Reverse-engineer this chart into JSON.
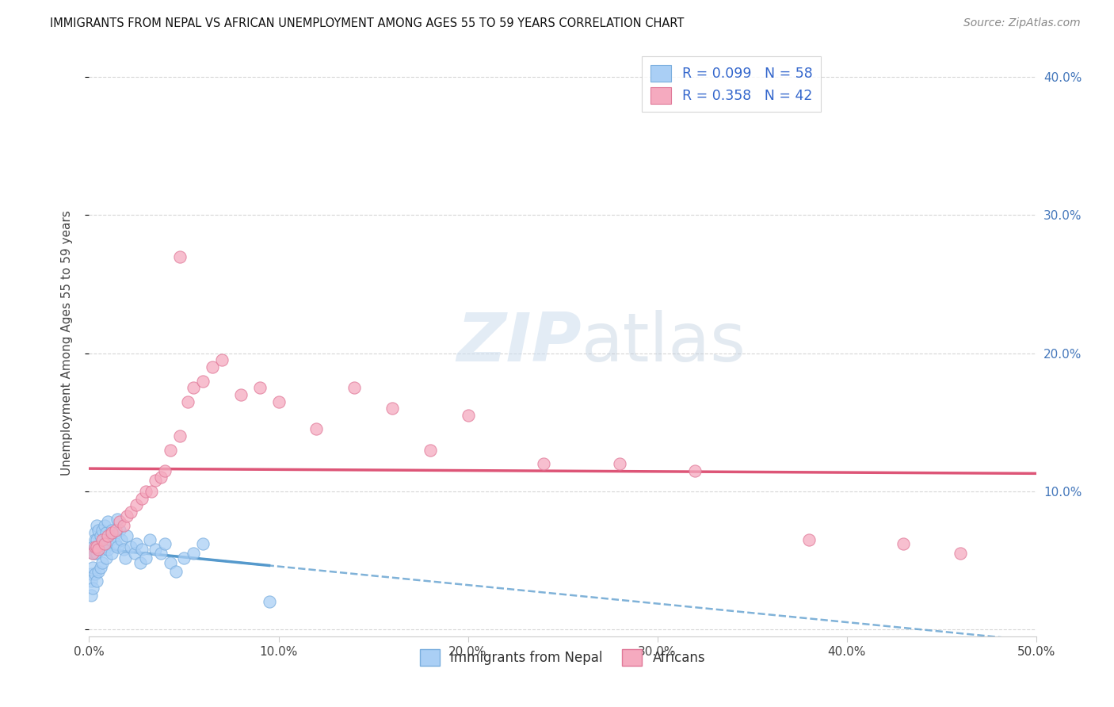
{
  "title": "IMMIGRANTS FROM NEPAL VS AFRICAN UNEMPLOYMENT AMONG AGES 55 TO 59 YEARS CORRELATION CHART",
  "source": "Source: ZipAtlas.com",
  "ylabel": "Unemployment Among Ages 55 to 59 years",
  "xlim": [
    0.0,
    0.5
  ],
  "ylim": [
    -0.005,
    0.42
  ],
  "xticks": [
    0.0,
    0.1,
    0.2,
    0.3,
    0.4,
    0.5
  ],
  "yticks_right": [
    0.0,
    0.1,
    0.2,
    0.3,
    0.4
  ],
  "ytick_labels_right": [
    "",
    "10.0%",
    "20.0%",
    "30.0%",
    "40.0%"
  ],
  "xtick_labels": [
    "0.0%",
    "10.0%",
    "20.0%",
    "30.0%",
    "40.0%",
    "50.0%"
  ],
  "nepal_color": "#aacff5",
  "nepal_edge_color": "#7aaede",
  "african_color": "#f5aabf",
  "african_edge_color": "#e07898",
  "nepal_R": 0.099,
  "nepal_N": 58,
  "african_R": 0.358,
  "african_N": 42,
  "legend_label_nepal": "Immigrants from Nepal",
  "legend_label_african": "Africans",
  "nepal_trend_color": "#5599cc",
  "african_trend_color": "#dd5577",
  "watermark_zip": "ZIP",
  "watermark_atlas": "atlas",
  "background_color": "#ffffff",
  "grid_color": "#cccccc",
  "nepal_scatter_x": [
    0.001,
    0.001,
    0.001,
    0.002,
    0.002,
    0.002,
    0.002,
    0.003,
    0.003,
    0.003,
    0.003,
    0.004,
    0.004,
    0.004,
    0.004,
    0.005,
    0.005,
    0.005,
    0.006,
    0.006,
    0.006,
    0.007,
    0.007,
    0.007,
    0.008,
    0.008,
    0.009,
    0.009,
    0.01,
    0.01,
    0.011,
    0.012,
    0.012,
    0.013,
    0.014,
    0.015,
    0.015,
    0.016,
    0.017,
    0.018,
    0.019,
    0.02,
    0.022,
    0.024,
    0.025,
    0.027,
    0.028,
    0.03,
    0.032,
    0.035,
    0.038,
    0.04,
    0.043,
    0.046,
    0.05,
    0.055,
    0.06,
    0.095
  ],
  "nepal_scatter_y": [
    0.04,
    0.035,
    0.025,
    0.06,
    0.055,
    0.045,
    0.03,
    0.07,
    0.065,
    0.055,
    0.04,
    0.075,
    0.065,
    0.055,
    0.035,
    0.072,
    0.058,
    0.042,
    0.068,
    0.058,
    0.045,
    0.072,
    0.06,
    0.048,
    0.075,
    0.058,
    0.07,
    0.052,
    0.078,
    0.058,
    0.065,
    0.072,
    0.055,
    0.068,
    0.062,
    0.08,
    0.06,
    0.072,
    0.065,
    0.058,
    0.052,
    0.068,
    0.06,
    0.055,
    0.062,
    0.048,
    0.058,
    0.052,
    0.065,
    0.058,
    0.055,
    0.062,
    0.048,
    0.042,
    0.052,
    0.055,
    0.062,
    0.02
  ],
  "african_scatter_x": [
    0.002,
    0.003,
    0.004,
    0.005,
    0.007,
    0.008,
    0.01,
    0.012,
    0.014,
    0.016,
    0.018,
    0.02,
    0.022,
    0.025,
    0.028,
    0.03,
    0.033,
    0.035,
    0.038,
    0.04,
    0.043,
    0.048,
    0.052,
    0.055,
    0.06,
    0.065,
    0.07,
    0.08,
    0.09,
    0.1,
    0.12,
    0.14,
    0.16,
    0.18,
    0.2,
    0.24,
    0.28,
    0.32,
    0.38,
    0.43,
    0.048,
    0.46
  ],
  "african_scatter_y": [
    0.055,
    0.06,
    0.06,
    0.058,
    0.065,
    0.062,
    0.068,
    0.07,
    0.072,
    0.078,
    0.075,
    0.082,
    0.085,
    0.09,
    0.095,
    0.1,
    0.1,
    0.108,
    0.11,
    0.115,
    0.13,
    0.14,
    0.165,
    0.175,
    0.18,
    0.19,
    0.195,
    0.17,
    0.175,
    0.165,
    0.145,
    0.175,
    0.16,
    0.13,
    0.155,
    0.12,
    0.12,
    0.115,
    0.065,
    0.062,
    0.27,
    0.055
  ]
}
